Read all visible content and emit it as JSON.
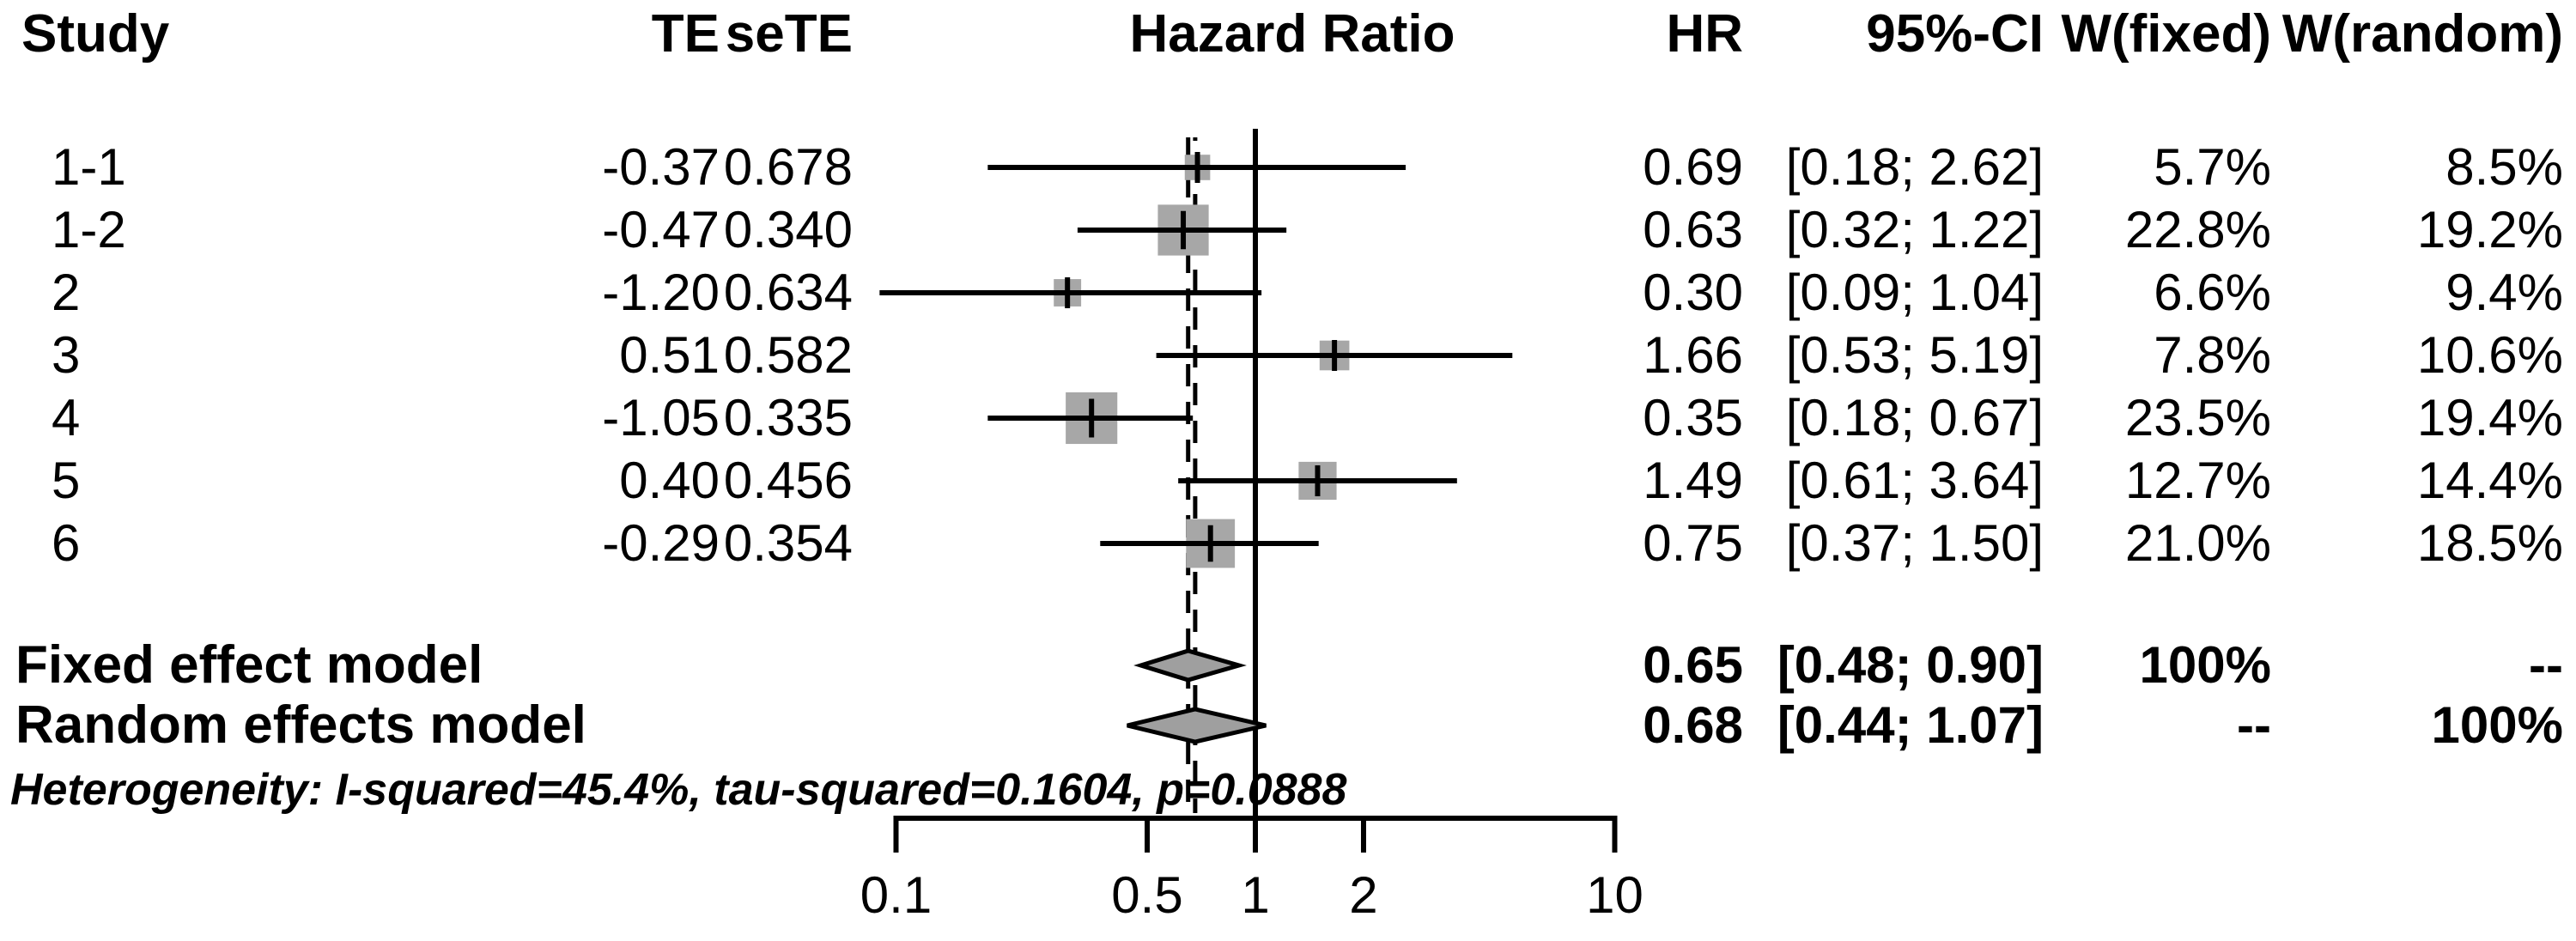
{
  "header": {
    "study": "Study",
    "te": "TE",
    "sete": "seTE",
    "plot_title": "Hazard Ratio",
    "hr": "HR",
    "ci": "95%-CI",
    "w_fixed": "W(fixed)",
    "w_random": "W(random)"
  },
  "chart_data": {
    "type": "forest",
    "title": "Hazard Ratio",
    "x_axis": {
      "scale": "log10",
      "ticks": [
        0.1,
        0.5,
        1,
        2,
        10
      ],
      "tick_labels": [
        "0.1",
        "0.5",
        "1",
        "2",
        "10"
      ],
      "range": [
        0.1,
        10
      ],
      "reference_line": 1.0,
      "dashed_lines": [
        0.65,
        0.68
      ]
    },
    "studies": [
      {
        "study": "1-1",
        "te": "-0.37",
        "sete": "0.678",
        "hr": 0.69,
        "ci_low": 0.18,
        "ci_high": 2.62,
        "hr_label": "0.69",
        "ci_label": "[0.18; 2.62]",
        "w_fixed": 5.7,
        "w_random": 8.5,
        "w_fixed_label": "5.7%",
        "w_random_label": "8.5%"
      },
      {
        "study": "1-2",
        "te": "-0.47",
        "sete": "0.340",
        "hr": 0.63,
        "ci_low": 0.32,
        "ci_high": 1.22,
        "hr_label": "0.63",
        "ci_label": "[0.32; 1.22]",
        "w_fixed": 22.8,
        "w_random": 19.2,
        "w_fixed_label": "22.8%",
        "w_random_label": "19.2%"
      },
      {
        "study": "2",
        "te": "-1.20",
        "sete": "0.634",
        "hr": 0.3,
        "ci_low": 0.09,
        "ci_high": 1.04,
        "hr_label": "0.30",
        "ci_label": "[0.09; 1.04]",
        "w_fixed": 6.6,
        "w_random": 9.4,
        "w_fixed_label": "6.6%",
        "w_random_label": "9.4%"
      },
      {
        "study": "3",
        "te": "0.51",
        "sete": "0.582",
        "hr": 1.66,
        "ci_low": 0.53,
        "ci_high": 5.19,
        "hr_label": "1.66",
        "ci_label": "[0.53; 5.19]",
        "w_fixed": 7.8,
        "w_random": 10.6,
        "w_fixed_label": "7.8%",
        "w_random_label": "10.6%"
      },
      {
        "study": "4",
        "te": "-1.05",
        "sete": "0.335",
        "hr": 0.35,
        "ci_low": 0.18,
        "ci_high": 0.67,
        "hr_label": "0.35",
        "ci_label": "[0.18; 0.67]",
        "w_fixed": 23.5,
        "w_random": 19.4,
        "w_fixed_label": "23.5%",
        "w_random_label": "19.4%"
      },
      {
        "study": "5",
        "te": "0.40",
        "sete": "0.456",
        "hr": 1.49,
        "ci_low": 0.61,
        "ci_high": 3.64,
        "hr_label": "1.49",
        "ci_label": "[0.61; 3.64]",
        "w_fixed": 12.7,
        "w_random": 14.4,
        "w_fixed_label": "12.7%",
        "w_random_label": "14.4%"
      },
      {
        "study": "6",
        "te": "-0.29",
        "sete": "0.354",
        "hr": 0.75,
        "ci_low": 0.37,
        "ci_high": 1.5,
        "hr_label": "0.75",
        "ci_label": "[0.37; 1.50]",
        "w_fixed": 21.0,
        "w_random": 18.5,
        "w_fixed_label": "21.0%",
        "w_random_label": "18.5%"
      }
    ],
    "summaries": [
      {
        "label": "Fixed effect model",
        "hr": 0.65,
        "ci_low": 0.48,
        "ci_high": 0.9,
        "hr_label": "0.65",
        "ci_label": "[0.48; 0.90]",
        "w_fixed_label": "100%",
        "w_random_label": "--"
      },
      {
        "label": "Random effects model",
        "hr": 0.68,
        "ci_low": 0.44,
        "ci_high": 1.07,
        "hr_label": "0.68",
        "ci_label": "[0.44; 1.07]",
        "w_fixed_label": "--",
        "w_random_label": "100%"
      }
    ],
    "heterogeneity": "Heterogeneity: I-squared=45.4%, tau-squared=0.1604, p=0.0888"
  },
  "style": {
    "square_color": "#a7a7a7",
    "diamond_color": "#9f9f9f",
    "line_color": "#000000",
    "background": "#ffffff"
  }
}
